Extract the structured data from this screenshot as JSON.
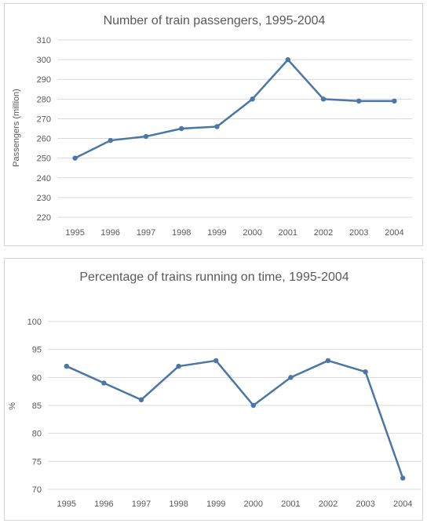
{
  "chart_data": [
    {
      "type": "line",
      "title": "Number of train passengers, 1995-2004",
      "xlabel": "",
      "ylabel": "Passengers (million)",
      "categories": [
        "1995",
        "1996",
        "1997",
        "1998",
        "1999",
        "2000",
        "2001",
        "2002",
        "2003",
        "2004"
      ],
      "series": [
        {
          "values": [
            250,
            259,
            261,
            265,
            266,
            280,
            300,
            280,
            279,
            279
          ],
          "color": "#4a76a8"
        }
      ],
      "ylim": [
        220,
        310
      ],
      "yticks": [
        220,
        230,
        240,
        250,
        260,
        270,
        280,
        290,
        300,
        310
      ],
      "grid": true,
      "legend": "none"
    },
    {
      "type": "line",
      "title": "Percentage of trains running on time, 1995-2004",
      "xlabel": "",
      "ylabel": "%",
      "categories": [
        "1995",
        "1996",
        "1997",
        "1998",
        "1999",
        "2000",
        "2001",
        "2002",
        "2003",
        "2004"
      ],
      "series": [
        {
          "values": [
            92,
            89,
            86,
            92,
            93,
            85,
            90,
            93,
            91,
            72
          ],
          "color": "#4a76a8"
        }
      ],
      "ylim": [
        70,
        100
      ],
      "yticks": [
        70,
        75,
        80,
        85,
        90,
        95,
        100
      ],
      "grid": true,
      "legend": "none"
    }
  ]
}
